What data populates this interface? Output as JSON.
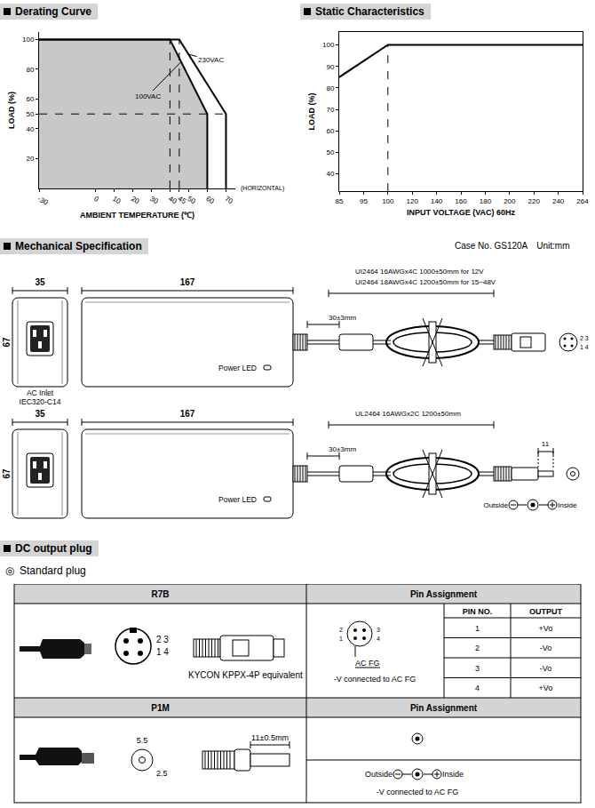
{
  "chart_data": [
    {
      "type": "line",
      "title": "Derating Curve",
      "x_label": "AMBIENT TEMPERATURE (℃)",
      "y_label": "LOAD (%)",
      "x_note": "(HORIZONTAL)",
      "xlim": [
        -30,
        75
      ],
      "ylim": [
        0,
        105
      ],
      "xticks": [
        -30,
        0,
        10,
        20,
        30,
        40,
        45,
        50,
        60,
        70
      ],
      "yticks": [
        20,
        40,
        50,
        60,
        80,
        100
      ],
      "grid": false,
      "guides": {
        "x": [
          40,
          45
        ],
        "y": [
          50
        ]
      },
      "series": [
        {
          "name": "100VAC",
          "color": "#000000",
          "x": [
            -30,
            40,
            60,
            60
          ],
          "values": [
            100,
            100,
            50,
            0
          ],
          "label_x": 28,
          "label_y": 62,
          "arrow_x": 46,
          "arrow_y": 85
        },
        {
          "name": "230VAC",
          "color": "#000000",
          "x": [
            -30,
            45,
            70,
            70
          ],
          "values": [
            100,
            100,
            50,
            0
          ],
          "label_x": 62,
          "label_y": 86,
          "arrow_x": 50,
          "arrow_y": 90
        }
      ]
    },
    {
      "type": "line",
      "title": "Static Characteristics",
      "x_label": "INPUT VOLTAGE (VAC) 60Hz",
      "y_label": "LOAD (%)",
      "categories": [
        "85",
        "95",
        "100",
        "120",
        "140",
        "160",
        "180",
        "200",
        "220",
        "240",
        "264"
      ],
      "values": [
        85,
        92.5,
        100,
        100,
        100,
        100,
        100,
        100,
        100,
        100,
        100
      ],
      "color": "#000000",
      "ylim": [
        32,
        106
      ],
      "yticks": [
        40,
        50,
        60,
        70,
        80,
        90,
        100
      ],
      "grid": false,
      "guides": {
        "x": [
          "100"
        ]
      }
    }
  ],
  "mechanical": {
    "title": "Mechanical Specification",
    "case": "Case No. GS120A",
    "unit": "Unit:mm",
    "views": [
      {
        "width": "35",
        "length": "167",
        "height": "67",
        "led": "Power LED",
        "inlet": [
          "AC Inlet",
          "IEC320-C14"
        ],
        "cable": [
          "UI2464 16AWGx4C 1000±50mm for 12V",
          "UI2464 18AWGx4C 1200±50mm for 15~48V"
        ],
        "strain": "30±3mm",
        "pins": [
          "2 3",
          "1 4"
        ]
      },
      {
        "width": "35",
        "length": "167",
        "height": "67",
        "led": "Power LED",
        "cable": [
          "UL2464 16AWGx2C 1200±50mm"
        ],
        "strain": "30±3mm",
        "plug_length": "11",
        "polarity": [
          "Outside",
          "Inside"
        ]
      }
    ]
  },
  "dc_output_plug": {
    "title": "DC output plug",
    "bullet": "◎",
    "subtitle": "Standard plug",
    "rows": [
      {
        "name": "R7B",
        "pins": [
          "2 3",
          "1 4"
        ],
        "note": "KYCON KPPX-4P equivalent",
        "assignment_title": "Pin Assignment",
        "pin_labels": [
          "2",
          "3",
          "1",
          "4"
        ],
        "fg": "AC FG",
        "connection": "-V connected to AC FG",
        "table": {
          "header": [
            "PIN NO.",
            "OUTPUT"
          ],
          "rows": [
            [
              1,
              "+Vo"
            ],
            [
              2,
              "-Vo"
            ],
            [
              3,
              "-Vo"
            ],
            [
              4,
              "+Vo"
            ]
          ]
        }
      },
      {
        "name": "P1M",
        "dims": [
          "5.5",
          "2.5"
        ],
        "length": "11±0.5mm",
        "assignment_title": "Pin Assignment",
        "polarity": [
          "Outside",
          "Inside"
        ],
        "connection": "-V connected to AC FG"
      }
    ]
  }
}
